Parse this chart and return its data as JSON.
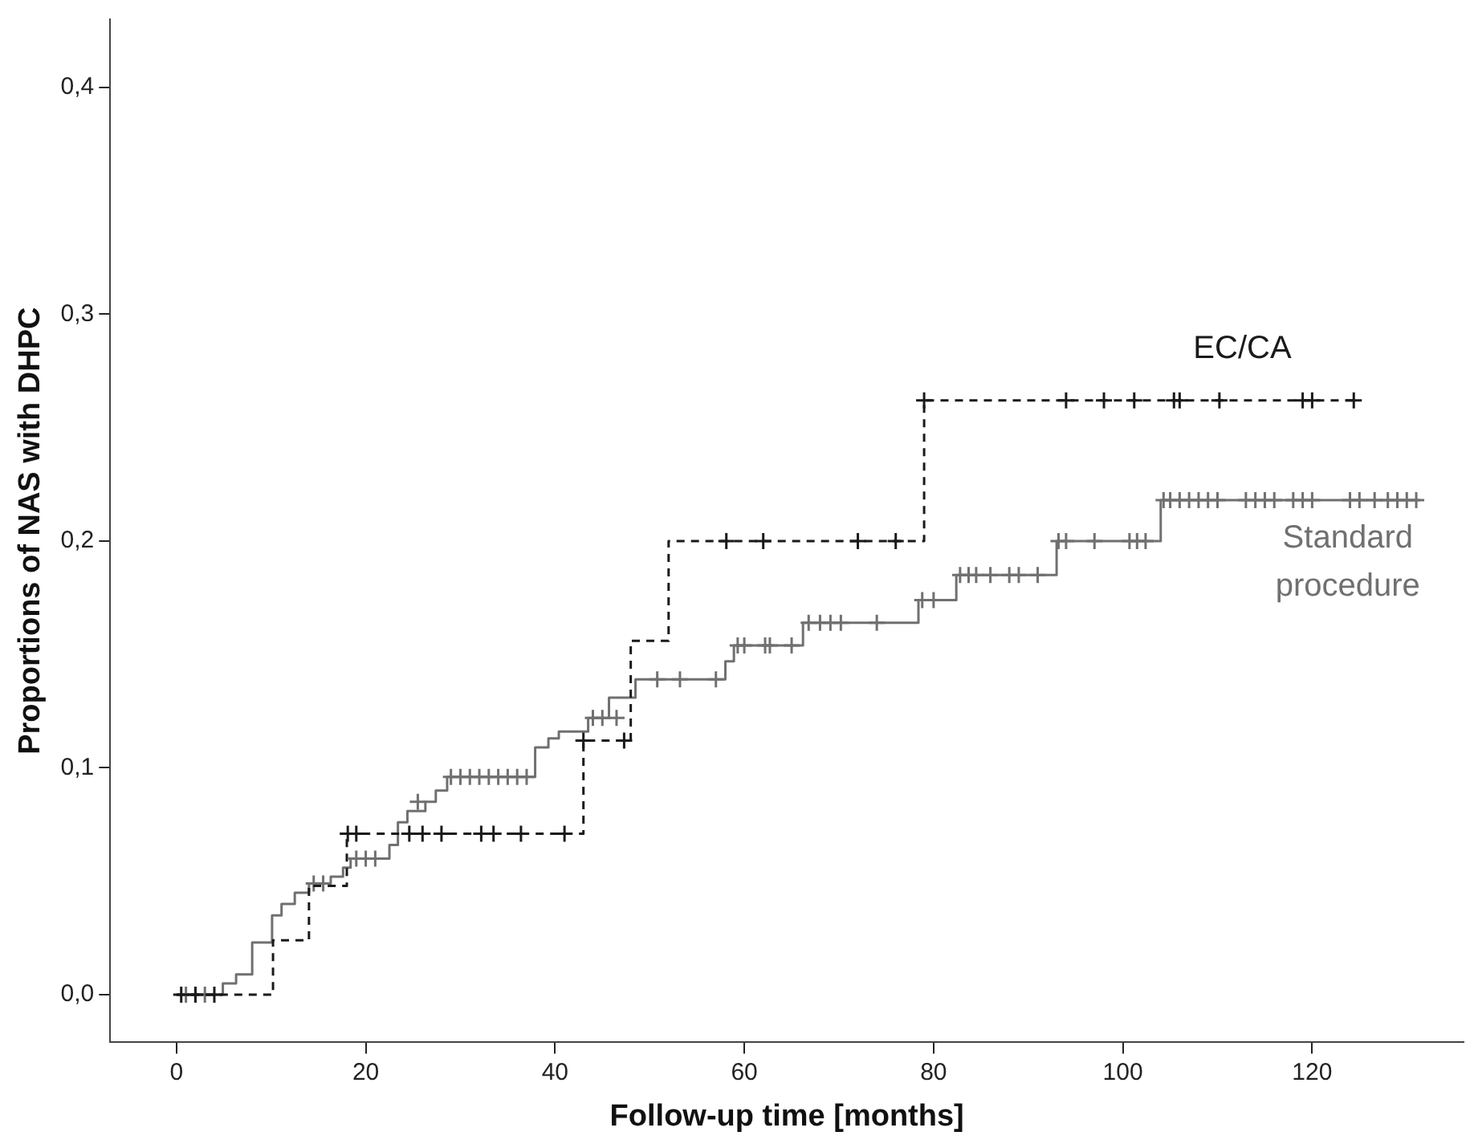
{
  "chart_data": {
    "type": "step",
    "xlabel": "Follow-up time [months]",
    "ylabel": "Proportions of NAS with DHPC",
    "xlim": [
      -7,
      136
    ],
    "xticks": [
      0,
      20,
      40,
      60,
      80,
      100,
      120
    ],
    "ylim": [
      -0.021,
      0.43
    ],
    "yticks": [
      {
        "value": 0,
        "label": "0,0"
      },
      {
        "value": 0.1,
        "label": "0,1"
      },
      {
        "value": 0.2,
        "label": "0,2"
      },
      {
        "value": 0.3,
        "label": "0,3"
      },
      {
        "value": 0.4,
        "label": "0,4"
      }
    ],
    "grid": false,
    "legend": false,
    "series": [
      {
        "name": "EC/CA",
        "color": "#1a1a1a",
        "line_style": "dashed",
        "marker": "none",
        "x": [
          0,
          10.2,
          14,
          18,
          43,
          48,
          52,
          79,
          124.5
        ],
        "values": [
          0,
          0.024,
          0.048,
          0.071,
          0.112,
          0.156,
          0.2,
          0.262,
          0.262
        ]
      },
      {
        "type": "scatter",
        "color": "#1a1a1a",
        "marker": "cross",
        "x": [
          0.5,
          2,
          4,
          18.1,
          19,
          24.6,
          26,
          28,
          32.2,
          33.5,
          36.4,
          41,
          43,
          47.3,
          58.1,
          62,
          72,
          76,
          79,
          94,
          98,
          101.2,
          105.4,
          106,
          110.2,
          119,
          120,
          124.4
        ],
        "values": [
          0,
          0,
          0,
          0.071,
          0.071,
          0.071,
          0.071,
          0.071,
          0.071,
          0.071,
          0.071,
          0.071,
          0.112,
          0.112,
          0.2,
          0.2,
          0.2,
          0.2,
          0.262,
          0.262,
          0.262,
          0.262,
          0.262,
          0.262,
          0.262,
          0.262,
          0.262,
          0.262
        ]
      },
      {
        "name": "Standard procedure",
        "color": "#707070",
        "line_style": "solid",
        "marker": "none",
        "x": [
          0,
          4.9,
          6.3,
          8,
          10.1,
          11.1,
          12.5,
          14,
          16.3,
          17.6,
          18.4,
          22.5,
          23.4,
          24.4,
          26.3,
          27.4,
          28.6,
          37.9,
          39.3,
          40.4,
          43.5,
          45.7,
          48.5,
          58,
          58.9,
          66.2,
          78.4,
          82.4,
          93,
          104,
          131.4
        ],
        "values": [
          0,
          0.005,
          0.009,
          0.023,
          0.035,
          0.04,
          0.045,
          0.049,
          0.052,
          0.056,
          0.06,
          0.066,
          0.076,
          0.081,
          0.085,
          0.09,
          0.096,
          0.109,
          0.113,
          0.116,
          0.122,
          0.131,
          0.139,
          0.147,
          0.154,
          0.164,
          0.174,
          0.185,
          0.2,
          0.218,
          0.218
        ]
      },
      {
        "type": "scatter",
        "color": "#707070",
        "marker": "cross",
        "x": [
          1,
          2,
          3,
          14.5,
          15.5,
          19,
          20,
          21,
          25.5,
          29,
          30,
          31,
          32,
          33,
          34,
          35,
          36,
          37,
          44,
          45,
          46.5,
          50.8,
          53.2,
          57,
          59.3,
          60,
          62.2,
          62.7,
          65,
          66.8,
          68,
          69.1,
          70.2,
          74,
          78.8,
          80,
          82.8,
          83.7,
          84.5,
          86,
          88,
          89,
          91,
          93.2,
          94,
          97,
          100.7,
          101.5,
          102.4,
          104.3,
          105,
          106,
          107,
          108,
          109,
          110,
          113,
          114,
          115,
          116,
          118,
          119,
          120,
          124,
          125,
          126.6,
          128,
          129,
          130,
          131
        ],
        "values": [
          0,
          0,
          0,
          0.049,
          0.049,
          0.06,
          0.06,
          0.06,
          0.085,
          0.096,
          0.096,
          0.096,
          0.096,
          0.096,
          0.096,
          0.096,
          0.096,
          0.096,
          0.122,
          0.122,
          0.122,
          0.139,
          0.139,
          0.139,
          0.154,
          0.154,
          0.154,
          0.154,
          0.154,
          0.164,
          0.164,
          0.164,
          0.164,
          0.164,
          0.174,
          0.174,
          0.185,
          0.185,
          0.185,
          0.185,
          0.185,
          0.185,
          0.185,
          0.2,
          0.2,
          0.2,
          0.2,
          0.2,
          0.2,
          0.218,
          0.218,
          0.218,
          0.218,
          0.218,
          0.218,
          0.218,
          0.218,
          0.218,
          0.218,
          0.218,
          0.218,
          0.218,
          0.218,
          0.218,
          0.218,
          0.218,
          0.218,
          0.218,
          0.218,
          0.218
        ]
      }
    ]
  }
}
